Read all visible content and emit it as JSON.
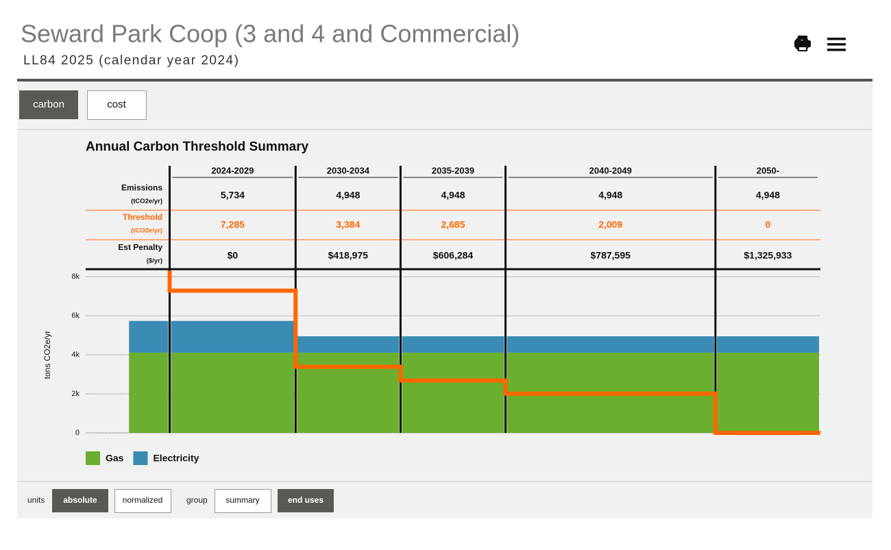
{
  "header": {
    "title": "Seward Park Coop (3 and 4 and Commercial)",
    "subtitle": "LL84 2025 (calendar year 2024)"
  },
  "tabs": [
    "carbon",
    "cost"
  ],
  "chart_data": {
    "type": "bar",
    "title": "Annual Carbon Threshold Summary",
    "y_label": "tons CO2e/yr",
    "x": [
      2022,
      2024,
      2030,
      2035,
      2040,
      2050
    ],
    "xlim": [
      2020,
      2055
    ],
    "ylim": [
      0,
      8000
    ],
    "yticks": [
      0,
      {
        "value": 2000,
        "label": "2k"
      },
      {
        "value": 4000,
        "label": "4k"
      },
      {
        "value": 6000,
        "label": "6k"
      },
      {
        "value": 8000,
        "label": "8k"
      }
    ],
    "grid": true,
    "stacked": true,
    "series": [
      {
        "name": "Gas",
        "color": "#6aaf2f",
        "values": [
          4110,
          4110,
          4110,
          4110,
          4110,
          4110
        ]
      },
      {
        "name": "Electricity",
        "color": "#3a8cb4",
        "values": [
          1624,
          1624,
          838,
          838,
          838,
          838
        ]
      }
    ],
    "table": {
      "periods": [
        "2024-2029",
        "2030-2034",
        "2035-2039",
        "2040-2049",
        "2050-"
      ],
      "rows": [
        {
          "name": "Emissions",
          "unit": "(tCO2e/yr)",
          "color": "#111111",
          "values": [
            5734,
            4948,
            4948,
            4948,
            4948
          ],
          "value_labels": [
            "5,734",
            "4,948",
            "4,948",
            "4,948",
            "4,948"
          ]
        },
        {
          "name": "Threshold",
          "unit": "(tCO2e/yr)",
          "color": "#ff6600",
          "step_line": true,
          "values": [
            7285,
            3384,
            2685,
            2009,
            0
          ],
          "value_labels": [
            "7,285",
            "3,384",
            "2,685",
            "2,009",
            "0"
          ]
        },
        {
          "name": "Est Penalty",
          "unit": "($/yr)",
          "color": "#111111",
          "values": [
            0,
            418975,
            606284,
            787595,
            1325933
          ],
          "value_labels": [
            "$0",
            "$418,975",
            "$606,284",
            "$787,595",
            "$1,325,933"
          ]
        }
      ]
    }
  },
  "controls": {
    "units_label": "units",
    "units": [
      "absolute",
      "normalized"
    ],
    "group_label": "group",
    "group": [
      "summary",
      "end uses"
    ]
  }
}
